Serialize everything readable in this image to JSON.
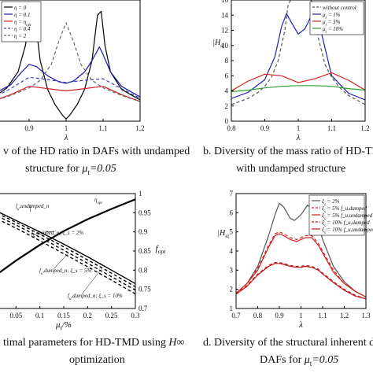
{
  "captions": {
    "a_line1": "v of the HD ratio in DAFs with undamped",
    "a_line2": "structure for",
    "a_mu": "μ",
    "a_mu_sub": "t",
    "a_value": "=0.05",
    "b_line1": "b.   Diversity of the mass ratio of HD-TM",
    "b_line2": "with undamped structure",
    "c_line1": "timal parameters for HD-TMD using",
    "c_hinf": "H∞",
    "c_line2": "optimization",
    "d_line1": "d.   Diversity of the structural inherent dar",
    "d_line2": "DAFs for",
    "d_mu": "μ",
    "d_mu_sub": "t",
    "d_value": "=0.05"
  },
  "chart_data": [
    {
      "id": "a",
      "type": "line",
      "xlabel": "λ",
      "xlim": [
        0.8,
        1.2
      ],
      "xticks": [
        "0.9",
        "1",
        "1.1",
        "1.2"
      ],
      "legend_position": "top-left",
      "series": [
        {
          "name": "η = 0",
          "color": "#000000",
          "dash": "solid",
          "x": [
            0.8,
            0.84,
            0.87,
            0.89,
            0.905,
            0.915,
            0.93,
            0.95,
            0.97,
            0.99,
            1.0,
            1.01,
            1.03,
            1.05,
            1.07,
            1.085,
            1.095,
            1.105,
            1.12,
            1.15,
            1.2
          ],
          "y": [
            3.0,
            4.4,
            6.5,
            10.0,
            14.5,
            14.0,
            8.0,
            4.2,
            2.2,
            0.8,
            0.3,
            0.8,
            2.2,
            4.2,
            8.0,
            14.0,
            14.5,
            10.0,
            6.5,
            4.2,
            2.8
          ]
        },
        {
          "name": "η = 0.1",
          "color": "#1a1aa8",
          "dash": "solid",
          "x": [
            0.8,
            0.85,
            0.88,
            0.9,
            0.92,
            0.95,
            0.98,
            1.0,
            1.02,
            1.05,
            1.07,
            1.09,
            1.1,
            1.12,
            1.15,
            1.2
          ],
          "y": [
            3.5,
            4.8,
            6.5,
            7.5,
            7.2,
            6.0,
            5.2,
            5.0,
            5.3,
            6.5,
            8.0,
            9.8,
            8.8,
            6.5,
            4.6,
            3.2
          ]
        },
        {
          "name": "η = η_opt",
          "color": "#d62020",
          "dash": "solid",
          "x": [
            0.8,
            0.85,
            0.9,
            0.95,
            1.0,
            1.05,
            1.1,
            1.15,
            1.2
          ],
          "y": [
            2.6,
            3.5,
            4.6,
            4.3,
            4.0,
            4.3,
            4.6,
            3.5,
            2.6
          ]
        },
        {
          "name": "η = 0.4",
          "color": "#3a3ad0",
          "dash": "dashed",
          "x": [
            0.8,
            0.85,
            0.9,
            0.95,
            1.0,
            1.05,
            1.1,
            1.15,
            1.2
          ],
          "y": [
            3.0,
            4.3,
            5.8,
            5.5,
            5.1,
            5.4,
            5.6,
            4.3,
            3.0
          ]
        },
        {
          "name": "η = 2",
          "color": "#666666",
          "dash": "dashed",
          "x": [
            0.8,
            0.85,
            0.9,
            0.93,
            0.96,
            0.98,
            1.0,
            1.02,
            1.04,
            1.07,
            1.1,
            1.15,
            1.2
          ],
          "y": [
            2.6,
            3.4,
            4.4,
            5.4,
            7.5,
            10.5,
            13.0,
            10.5,
            7.5,
            5.4,
            4.4,
            3.4,
            2.6
          ]
        }
      ]
    },
    {
      "id": "b",
      "type": "line",
      "xlabel": "λ",
      "ylabel": "|H_d|",
      "xlim": [
        0.8,
        1.2
      ],
      "ylim": [
        0,
        16
      ],
      "xticks": [
        "0.8",
        "0.9",
        "1",
        "1.1",
        "1.2"
      ],
      "yticks": [
        "0",
        "2",
        "4",
        "6",
        "8",
        "10",
        "12",
        "14",
        "16"
      ],
      "legend_position": "top-right",
      "series": [
        {
          "name": "without control",
          "color": "#555555",
          "dash": "dashed",
          "x": [
            0.8,
            0.85,
            0.88,
            0.9,
            0.92,
            0.94,
            0.96,
            0.97,
            0.985,
            1.0,
            1.015,
            1.03,
            1.045,
            1.06,
            1.08,
            1.1,
            1.12,
            1.15,
            1.2
          ],
          "y": [
            2.2,
            3.0,
            3.8,
            4.6,
            5.8,
            8.0,
            12.0,
            15.5,
            16.5,
            16.5,
            16.5,
            16.5,
            15.5,
            11.0,
            7.5,
            5.8,
            4.6,
            3.4,
            2.2
          ]
        },
        {
          "name": "μ_t = 1%",
          "color": "#2222b5",
          "dash": "solid",
          "x": [
            0.8,
            0.85,
            0.9,
            0.93,
            0.95,
            0.965,
            0.98,
            1.0,
            1.02,
            1.04,
            1.055,
            1.07,
            1.1,
            1.15,
            1.2
          ],
          "y": [
            3.0,
            3.8,
            5.5,
            8.5,
            12.5,
            14.2,
            13.0,
            11.5,
            12.2,
            14.0,
            14.1,
            11.5,
            6.0,
            3.7,
            2.8
          ]
        },
        {
          "name": "μ_t = 5%",
          "color": "#d62020",
          "dash": "solid",
          "x": [
            0.8,
            0.85,
            0.9,
            0.95,
            1.0,
            1.05,
            1.1,
            1.15,
            1.2
          ],
          "y": [
            4.0,
            5.3,
            6.2,
            6.0,
            5.1,
            5.6,
            6.4,
            5.4,
            4.1
          ]
        },
        {
          "name": "μ_t = 10%",
          "color": "#2ca02c",
          "dash": "solid",
          "x": [
            0.8,
            0.85,
            0.9,
            0.95,
            1.0,
            1.05,
            1.1,
            1.15,
            1.2
          ],
          "y": [
            3.9,
            4.1,
            4.4,
            4.6,
            4.7,
            4.7,
            4.6,
            4.3,
            4.1
          ]
        }
      ]
    },
    {
      "id": "c",
      "type": "line",
      "xlabel": "μ_t/%",
      "y2label": "f_opt",
      "xlim": [
        0,
        0.3
      ],
      "y2lim": [
        0.7,
        1.0
      ],
      "xticks": [
        "0.05",
        "0.1",
        "0.15",
        "0.2",
        "0.25",
        "0.3"
      ],
      "y2ticks": [
        "0.7",
        "0.75",
        "0.8",
        "0.85",
        "0.9",
        "0.95",
        "1"
      ],
      "annotations": [
        "f_u,undamped_n",
        "f_u,damped_n; ξ_s = 2%",
        "f_u,damped_n; ξ_s = 5%",
        "f_u,damped_n; ξ_s = 10%",
        "η_opt"
      ],
      "series": [
        {
          "name": "η_opt",
          "color": "#000000",
          "dash": "solid",
          "width": 2.2,
          "x": [
            0.0,
            0.05,
            0.1,
            0.15,
            0.2,
            0.25,
            0.3
          ],
          "y": [
            0.78,
            0.825,
            0.866,
            0.902,
            0.933,
            0.96,
            0.985
          ]
        },
        {
          "name": "f_u,undamped_n",
          "color": "#000000",
          "dash": "solid",
          "width": 1.4,
          "x": [
            0.0,
            0.05,
            0.1,
            0.15,
            0.2,
            0.25,
            0.3
          ],
          "y": [
            0.96,
            0.93,
            0.9,
            0.868,
            0.835,
            0.8,
            0.765
          ]
        },
        {
          "name": "f_u,damped_n; ξ_s = 2%",
          "color": "#000000",
          "dash": "dashed",
          "width": 1.4,
          "x": [
            0.0,
            0.05,
            0.1,
            0.15,
            0.2,
            0.25,
            0.3
          ],
          "y": [
            0.955,
            0.925,
            0.894,
            0.861,
            0.827,
            0.792,
            0.757
          ]
        },
        {
          "name": "f_u,damped_n; ξ_s = 5%",
          "color": "#000000",
          "dash": "dashed",
          "width": 1.4,
          "x": [
            0.0,
            0.05,
            0.1,
            0.15,
            0.2,
            0.25,
            0.3
          ],
          "y": [
            0.948,
            0.918,
            0.886,
            0.852,
            0.818,
            0.783,
            0.748
          ]
        },
        {
          "name": "f_u,damped_n; ξ_s = 10%",
          "color": "#000000",
          "dash": "dashed",
          "width": 1.4,
          "x": [
            0.0,
            0.05,
            0.1,
            0.15,
            0.2,
            0.25,
            0.3
          ],
          "y": [
            0.94,
            0.91,
            0.877,
            0.843,
            0.809,
            0.774,
            0.738
          ]
        }
      ]
    },
    {
      "id": "d",
      "type": "line",
      "xlabel": "λ",
      "ylabel": "|H_u|",
      "xlim": [
        0.7,
        1.3
      ],
      "ylim": [
        1,
        7
      ],
      "xticks": [
        "0.7",
        "0.8",
        "0.9",
        "1",
        "1.1",
        "1.2",
        "1.3"
      ],
      "yticks": [
        "1",
        "2",
        "3",
        "4",
        "5",
        "6",
        "7"
      ],
      "legend_position": "top-right",
      "series": [
        {
          "name": "ξ_s = 2%",
          "color": "#555555",
          "dash": "solid",
          "x": [
            0.7,
            0.75,
            0.8,
            0.85,
            0.88,
            0.9,
            0.92,
            0.95,
            0.97,
            1.0,
            1.03,
            1.05,
            1.08,
            1.1,
            1.15,
            1.2,
            1.25,
            1.3
          ],
          "y": [
            1.8,
            2.3,
            3.2,
            4.8,
            5.9,
            6.5,
            6.3,
            5.7,
            5.6,
            5.9,
            6.4,
            6.2,
            5.4,
            4.6,
            3.2,
            2.4,
            1.9,
            1.6
          ]
        },
        {
          "name": "ξ_s = 5% f_u,damped",
          "color": "#d62020",
          "dash": "dashed",
          "x": [
            0.7,
            0.75,
            0.8,
            0.85,
            0.88,
            0.9,
            0.92,
            0.95,
            0.98,
            1.0,
            1.02,
            1.05,
            1.08,
            1.1,
            1.15,
            1.2,
            1.25,
            1.3
          ],
          "y": [
            1.8,
            2.3,
            3.1,
            4.3,
            4.9,
            5.0,
            4.9,
            4.7,
            4.6,
            4.7,
            4.8,
            4.8,
            4.4,
            4.0,
            3.0,
            2.3,
            1.9,
            1.6
          ]
        },
        {
          "name": "ξ_s = 5% f_u,undamped",
          "color": "#d62020",
          "dash": "solid",
          "x": [
            0.7,
            0.75,
            0.8,
            0.85,
            0.88,
            0.9,
            0.92,
            0.95,
            0.98,
            1.0,
            1.02,
            1.05,
            1.08,
            1.1,
            1.15,
            1.2,
            1.25,
            1.3
          ],
          "y": [
            1.8,
            2.3,
            3.0,
            4.2,
            4.8,
            4.9,
            4.8,
            4.6,
            4.5,
            4.6,
            4.7,
            4.7,
            4.3,
            3.9,
            2.9,
            2.3,
            1.9,
            1.6
          ]
        },
        {
          "name": "ξ_s = 10% f_u,damped",
          "color": "#c01818",
          "dash": "dashed",
          "x": [
            0.7,
            0.75,
            0.8,
            0.85,
            0.88,
            0.9,
            0.92,
            0.95,
            0.98,
            1.0,
            1.02,
            1.05,
            1.08,
            1.1,
            1.15,
            1.2,
            1.25,
            1.3
          ],
          "y": [
            1.75,
            2.2,
            2.8,
            3.25,
            3.4,
            3.4,
            3.35,
            3.25,
            3.2,
            3.2,
            3.25,
            3.2,
            3.05,
            2.85,
            2.4,
            2.0,
            1.7,
            1.5
          ]
        },
        {
          "name": "ξ_s = 10% f_u,undamped",
          "color": "#c01818",
          "dash": "solid",
          "x": [
            0.7,
            0.75,
            0.8,
            0.85,
            0.88,
            0.9,
            0.92,
            0.95,
            0.98,
            1.0,
            1.02,
            1.05,
            1.08,
            1.1,
            1.15,
            1.2,
            1.25,
            1.3
          ],
          "y": [
            1.75,
            2.15,
            2.75,
            3.2,
            3.35,
            3.35,
            3.3,
            3.2,
            3.15,
            3.15,
            3.2,
            3.15,
            3.0,
            2.8,
            2.35,
            1.95,
            1.65,
            1.5
          ]
        }
      ]
    }
  ]
}
